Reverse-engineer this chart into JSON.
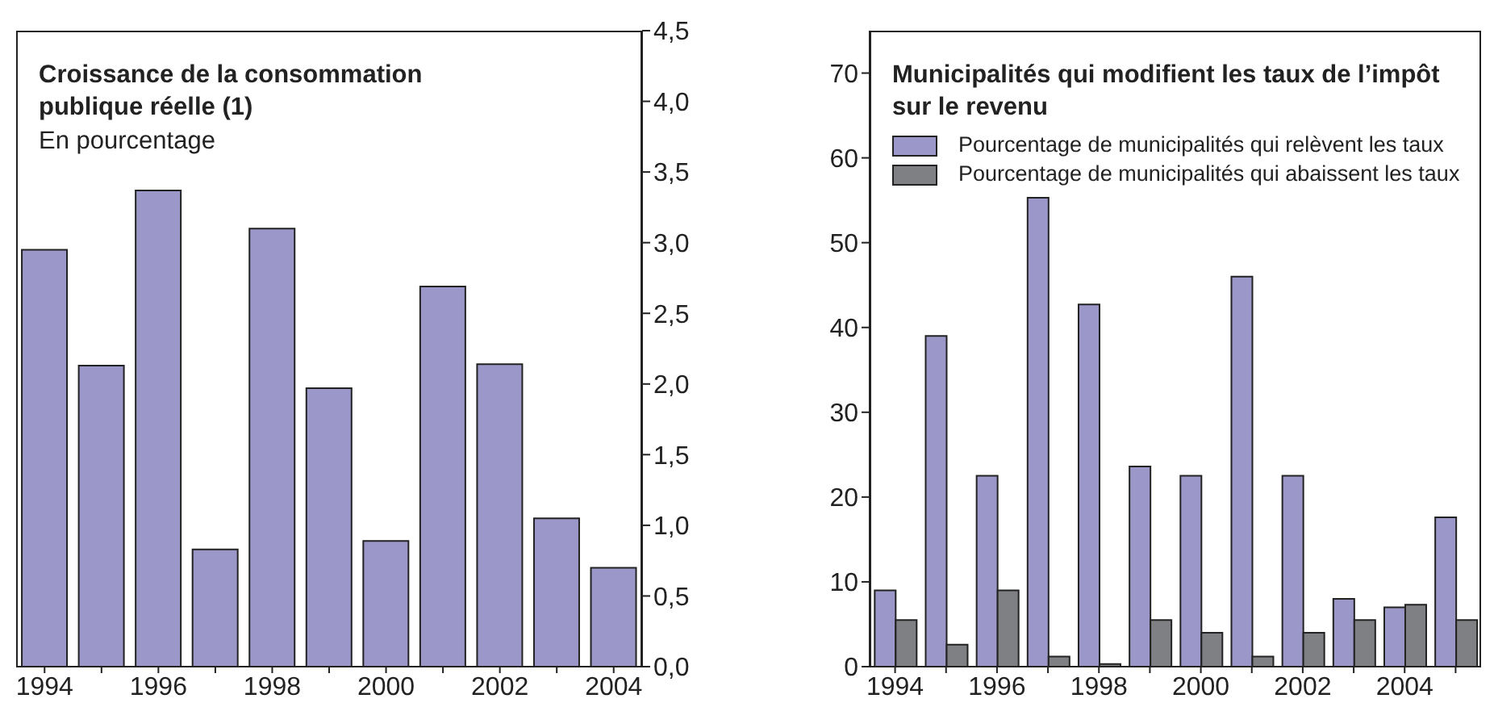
{
  "chart_data": [
    {
      "type": "bar",
      "title": "Croissance de la consommation publique réelle (1)",
      "subtitle": "En pourcentage",
      "categories": [
        "1994",
        null,
        "1996",
        null,
        "1998",
        null,
        "2000",
        null,
        "2002",
        null,
        "2004"
      ],
      "values": [
        2.95,
        2.13,
        3.37,
        0.83,
        3.1,
        1.97,
        0.89,
        2.69,
        2.14,
        1.05,
        0.7
      ],
      "color": "#9b97c8",
      "ylim": [
        0,
        4.5
      ],
      "yticks": [
        {
          "value": 0,
          "label": "0,0"
        },
        {
          "value": 0.5,
          "label": "0,5"
        },
        {
          "value": 1,
          "label": "1,0"
        },
        {
          "value": 1.5,
          "label": "1,5"
        },
        {
          "value": 2,
          "label": "2,0"
        },
        {
          "value": 2.5,
          "label": "2,5"
        },
        {
          "value": 3,
          "label": "3,0"
        },
        {
          "value": 3.5,
          "label": "3,5"
        },
        {
          "value": 4,
          "label": "4,0"
        },
        {
          "value": 4.5,
          "label": "4,5"
        }
      ],
      "grid": false,
      "legend": false
    },
    {
      "type": "bar",
      "title": "Municipalités qui modifient les taux de l’impôt sur le revenu",
      "categories": [
        "1994",
        null,
        "1996",
        null,
        "1998",
        null,
        "2000",
        null,
        "2002",
        null,
        "2004",
        null
      ],
      "series": [
        {
          "name": "Pourcentage de municipalités qui relèvent les taux",
          "color": "#9b97c8",
          "values": [
            9,
            39,
            22.5,
            55.3,
            42.7,
            23.6,
            22.5,
            46,
            22.5,
            8,
            7,
            17.6
          ]
        },
        {
          "name": "Pourcentage de municipalités qui abaissent les taux",
          "color": "#7f8083",
          "values": [
            5.5,
            2.6,
            9,
            1.2,
            0.3,
            5.5,
            4,
            1.2,
            4,
            5.5,
            7.3,
            5.5
          ]
        }
      ],
      "ylim": [
        0,
        75
      ],
      "yticks": [
        0,
        10,
        20,
        30,
        40,
        50,
        60,
        70
      ],
      "grid": false,
      "legend": "top left"
    }
  ]
}
